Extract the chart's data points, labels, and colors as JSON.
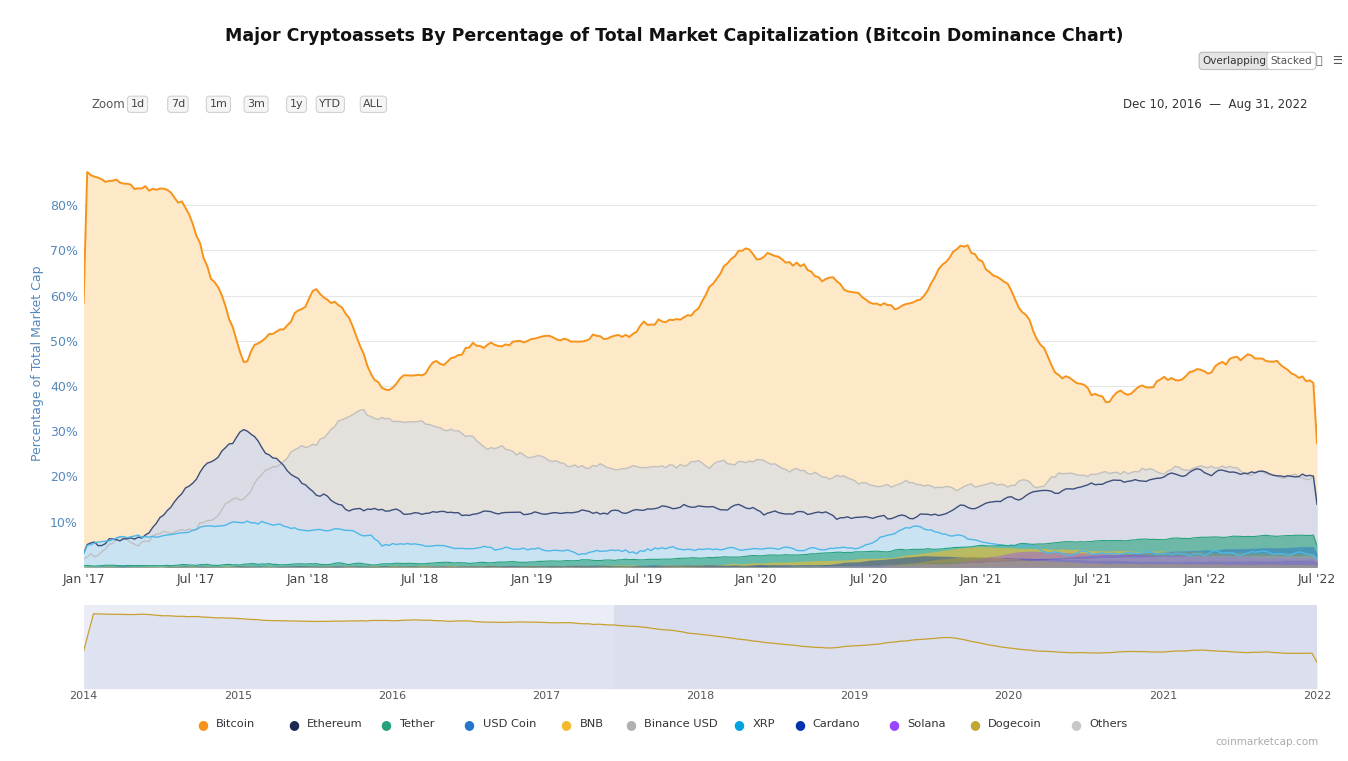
{
  "title": "Major Cryptoassets By Percentage of Total Market Capitalization (Bitcoin Dominance Chart)",
  "ylabel": "Percentage of Total Market Cap",
  "date_range_label": "Dec 10, 2016  —  Aug 31, 2022",
  "zoom_labels": [
    "Zoom",
    "1d",
    "7d",
    "1m",
    "3m",
    "1y",
    "YTD",
    "ALL"
  ],
  "view_labels": [
    "Overlapping",
    "Stacked"
  ],
  "x_tick_labels": [
    "Jan '17",
    "Jul '17",
    "Jan '18",
    "Jul '18",
    "Jan '19",
    "Jul '19",
    "Jan '20",
    "Jul '20",
    "Jan '21",
    "Jul '21",
    "Jan '22",
    "Jul '22"
  ],
  "mini_x_tick_labels": [
    "2014",
    "2015",
    "2016",
    "2017",
    "2018",
    "2019",
    "2020",
    "2021",
    "2022"
  ],
  "legend_items": [
    "Bitcoin",
    "Ethereum",
    "Tether",
    "USD Coin",
    "BNB",
    "Binance USD",
    "XRP",
    "Cardano",
    "Solana",
    "Dogecoin",
    "Others"
  ],
  "legend_colors": [
    "#f7931a",
    "#1c2951",
    "#26a17b",
    "#2775ca",
    "#f3ba2f",
    "#b0b0b0",
    "#00a3e0",
    "#0033ad",
    "#9945ff",
    "#c2a633",
    "#c8c8c8"
  ],
  "background_color": "#ffffff",
  "plot_bg_color": "#ffffff",
  "grid_color": "#e5e5e5",
  "bitcoin_fill_color": "#fde8c8",
  "bitcoin_line_color": "#f7931a",
  "ethereum_fill_color": "#d8dcea",
  "ethereum_line_color": "#3d4f7c",
  "xrp_fill_color": "#c8e4f5",
  "xrp_line_color": "#4db8e8",
  "others_fill_color": "#e0e0e0",
  "others_line_color": "#c0c0c0",
  "mini_fill_color": "#eaecf5",
  "mini_line_color": "#c8a030",
  "coinmarketcap_label": "coinmarketcap.com"
}
